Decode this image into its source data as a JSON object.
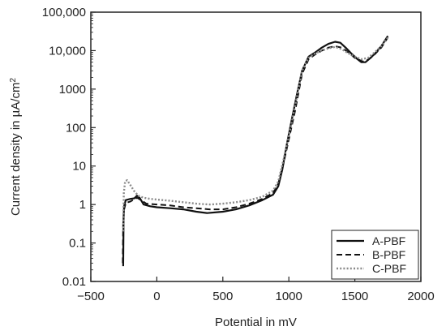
{
  "chart_data": {
    "type": "line",
    "title": "",
    "xlabel": "Potential in mV",
    "ylabel_prefix": "Current density in µA/cm",
    "ylabel_sup": "2",
    "xlim": [
      -500,
      2000
    ],
    "ylim": [
      0.01,
      100000
    ],
    "yscale": "log",
    "x_ticks": [
      -500,
      0,
      500,
      1000,
      1500,
      2000
    ],
    "x_tick_labels": [
      "−500",
      "0",
      "500",
      "1000",
      "1500",
      "2000"
    ],
    "y_ticks": [
      0.01,
      0.1,
      1,
      10,
      100,
      1000,
      10000,
      100000
    ],
    "y_tick_labels": [
      "0.01",
      "0.1",
      "1",
      "10",
      "100",
      "1000",
      "10,000",
      "100,000"
    ],
    "grid": false,
    "legend_position": "bottom-right",
    "series": [
      {
        "name": "A-PBF",
        "style": "solid",
        "color": "#111111",
        "points": [
          [
            -255,
            0.025
          ],
          [
            -252,
            0.4
          ],
          [
            -248,
            0.9
          ],
          [
            -235,
            1.3
          ],
          [
            -200,
            1.4
          ],
          [
            -170,
            1.45
          ],
          [
            -150,
            1.7
          ],
          [
            -130,
            1.5
          ],
          [
            -100,
            1.0
          ],
          [
            -50,
            0.9
          ],
          [
            0,
            0.85
          ],
          [
            100,
            0.8
          ],
          [
            200,
            0.75
          ],
          [
            300,
            0.65
          ],
          [
            380,
            0.6
          ],
          [
            500,
            0.65
          ],
          [
            600,
            0.75
          ],
          [
            700,
            0.95
          ],
          [
            800,
            1.3
          ],
          [
            880,
            1.8
          ],
          [
            920,
            3
          ],
          [
            950,
            8
          ],
          [
            980,
            30
          ],
          [
            1020,
            150
          ],
          [
            1060,
            700
          ],
          [
            1100,
            3000
          ],
          [
            1150,
            7000
          ],
          [
            1200,
            9000
          ],
          [
            1250,
            12000
          ],
          [
            1300,
            15000
          ],
          [
            1350,
            17000
          ],
          [
            1390,
            16000
          ],
          [
            1430,
            12000
          ],
          [
            1480,
            8000
          ],
          [
            1520,
            6000
          ],
          [
            1550,
            5000
          ],
          [
            1580,
            5000
          ],
          [
            1620,
            6500
          ],
          [
            1660,
            9000
          ],
          [
            1700,
            13000
          ],
          [
            1750,
            24000
          ]
        ]
      },
      {
        "name": "B-PBF",
        "style": "dashed",
        "color": "#111111",
        "points": [
          [
            -258,
            0.03
          ],
          [
            -255,
            0.3
          ],
          [
            -250,
            0.7
          ],
          [
            -235,
            1.1
          ],
          [
            -200,
            1.2
          ],
          [
            -150,
            1.5
          ],
          [
            -120,
            1.3
          ],
          [
            -80,
            1.05
          ],
          [
            0,
            1.0
          ],
          [
            100,
            0.95
          ],
          [
            200,
            0.85
          ],
          [
            300,
            0.8
          ],
          [
            400,
            0.75
          ],
          [
            500,
            0.75
          ],
          [
            600,
            0.85
          ],
          [
            700,
            1.05
          ],
          [
            800,
            1.4
          ],
          [
            880,
            2.0
          ],
          [
            920,
            3.5
          ],
          [
            960,
            12
          ],
          [
            1000,
            50
          ],
          [
            1050,
            300
          ],
          [
            1100,
            2500
          ],
          [
            1150,
            6000
          ],
          [
            1200,
            8000
          ],
          [
            1250,
            10000
          ],
          [
            1300,
            12000
          ],
          [
            1350,
            13000
          ],
          [
            1400,
            12000
          ],
          [
            1450,
            9000
          ],
          [
            1500,
            6500
          ],
          [
            1560,
            5200
          ],
          [
            1600,
            5800
          ],
          [
            1650,
            8000
          ],
          [
            1700,
            12000
          ],
          [
            1750,
            22000
          ]
        ]
      },
      {
        "name": "C-PBF",
        "style": "dotted",
        "color": "#8a8a8a",
        "points": [
          [
            -255,
            0.2
          ],
          [
            -250,
            2.0
          ],
          [
            -240,
            4.0
          ],
          [
            -225,
            4.3
          ],
          [
            -200,
            3.2
          ],
          [
            -170,
            2.2
          ],
          [
            -140,
            1.7
          ],
          [
            -100,
            1.5
          ],
          [
            -50,
            1.4
          ],
          [
            0,
            1.35
          ],
          [
            100,
            1.25
          ],
          [
            200,
            1.15
          ],
          [
            300,
            1.05
          ],
          [
            400,
            1.0
          ],
          [
            500,
            1.05
          ],
          [
            600,
            1.15
          ],
          [
            700,
            1.3
          ],
          [
            800,
            1.6
          ],
          [
            880,
            2.3
          ],
          [
            920,
            4
          ],
          [
            960,
            15
          ],
          [
            1000,
            60
          ],
          [
            1050,
            400
          ],
          [
            1100,
            3000
          ],
          [
            1150,
            6500
          ],
          [
            1200,
            8500
          ],
          [
            1250,
            10000
          ],
          [
            1300,
            11500
          ],
          [
            1350,
            12500
          ],
          [
            1400,
            11000
          ],
          [
            1450,
            8500
          ],
          [
            1500,
            7000
          ],
          [
            1550,
            6000
          ],
          [
            1600,
            6500
          ],
          [
            1650,
            9000
          ],
          [
            1700,
            13000
          ],
          [
            1750,
            22000
          ]
        ]
      }
    ]
  }
}
